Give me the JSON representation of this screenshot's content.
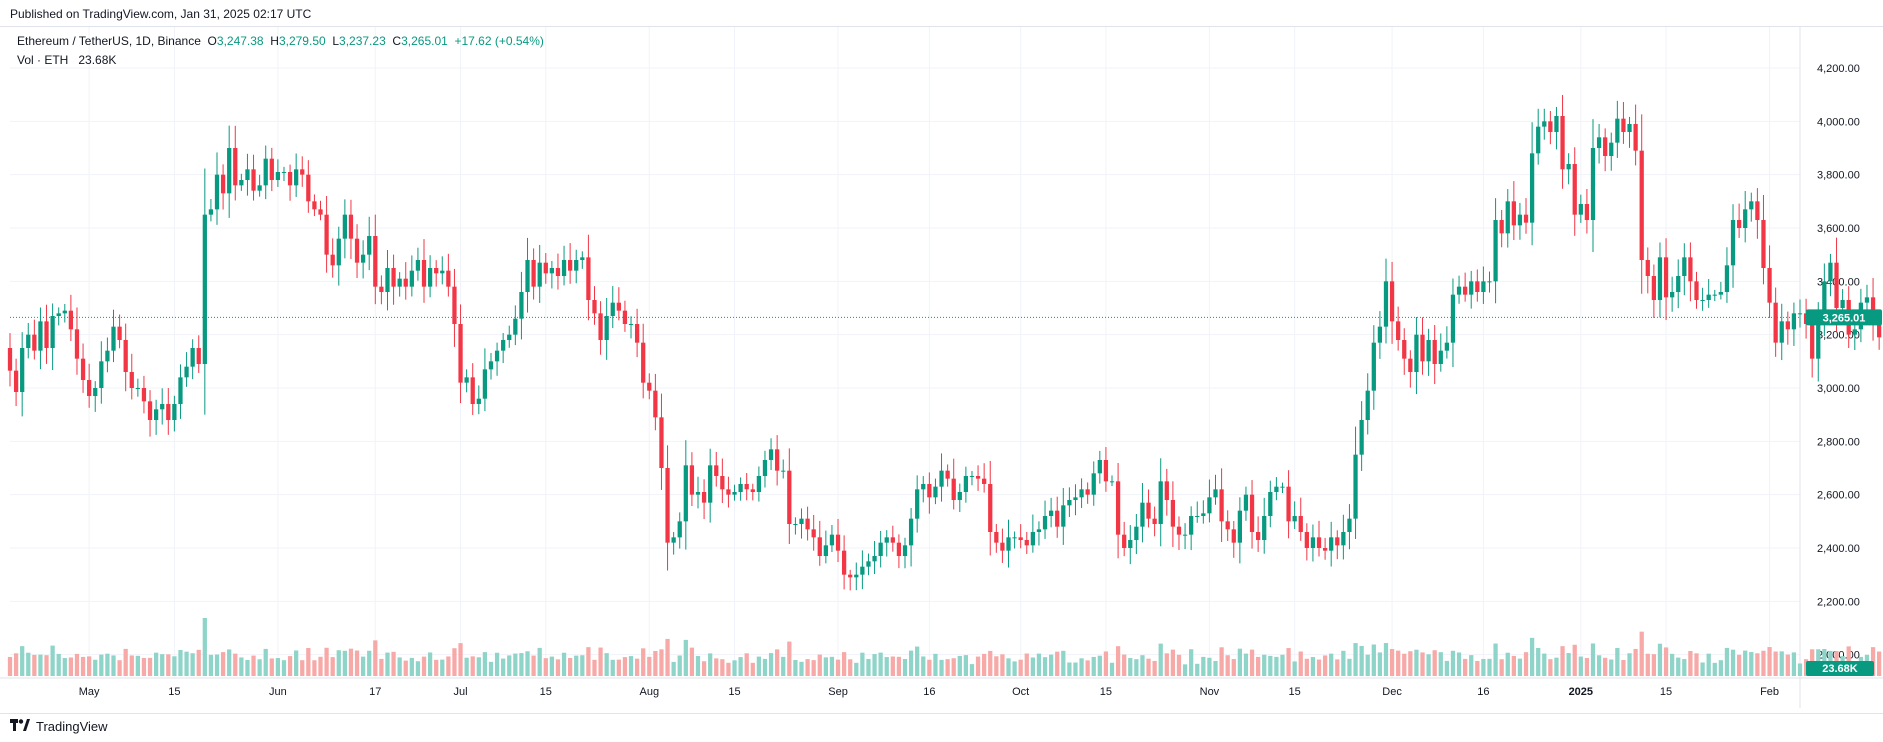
{
  "published": "Published on TradingView.com, Jan 31, 2025 02:17 UTC",
  "legend": {
    "symbol": "Ethereum / TetherUS, 1D, Binance",
    "o_label": "O",
    "o_value": "3,247.38",
    "h_label": "H",
    "h_value": "3,279.50",
    "l_label": "L",
    "l_value": "3,237.23",
    "c_label": "C",
    "c_value": "3,265.01",
    "change": "+17.62 (+0.54%)",
    "vol_label": "Vol · ETH",
    "vol_value": "23.68K"
  },
  "footer": {
    "brand": "TradingView",
    "logo_icon": "tradingview-logo-icon"
  },
  "colors": {
    "up": "#089981",
    "down": "#f23645",
    "up_vol": "#8fd4c8",
    "down_vol": "#f7a9a7",
    "grid": "#f0f3fa",
    "last_price_bg": "#089981"
  },
  "chart_data": {
    "type": "candlestick",
    "symbol": "Ethereum / TetherUS",
    "interval": "1D",
    "exchange": "Binance",
    "x_range": [
      "2024-04-18",
      "2025-02-06"
    ],
    "ylim": [
      1900,
      4300
    ],
    "y_ticks": [
      2000,
      2200,
      2400,
      2600,
      2800,
      3000,
      3200,
      3400,
      3600,
      3800,
      4000,
      4200
    ],
    "y_tick_labels": [
      "2,000.00",
      "2,200.00",
      "2,400.00",
      "2,600.00",
      "2,800.00",
      "3,000.00",
      "3,200.00",
      "3,400.00",
      "3,600.00",
      "3,800.00",
      "4,000.00",
      "4,200.00"
    ],
    "x_ticks": [
      {
        "date": "2024-05-01",
        "label": "May"
      },
      {
        "date": "2024-05-15",
        "label": "15"
      },
      {
        "date": "2024-06-01",
        "label": "Jun"
      },
      {
        "date": "2024-06-17",
        "label": "17"
      },
      {
        "date": "2024-07-01",
        "label": "Jul"
      },
      {
        "date": "2024-07-15",
        "label": "15"
      },
      {
        "date": "2024-08-01",
        "label": "Aug"
      },
      {
        "date": "2024-08-15",
        "label": "15"
      },
      {
        "date": "2024-09-01",
        "label": "Sep"
      },
      {
        "date": "2024-09-16",
        "label": "16"
      },
      {
        "date": "2024-10-01",
        "label": "Oct"
      },
      {
        "date": "2024-10-15",
        "label": "15"
      },
      {
        "date": "2024-11-01",
        "label": "Nov"
      },
      {
        "date": "2024-11-15",
        "label": "15"
      },
      {
        "date": "2024-12-01",
        "label": "Dec"
      },
      {
        "date": "2024-12-16",
        "label": "16"
      },
      {
        "date": "2025-01-01",
        "label": "2025"
      },
      {
        "date": "2025-01-15",
        "label": "15"
      },
      {
        "date": "2025-02-01",
        "label": "Feb"
      }
    ],
    "last_price": 3265.01,
    "last_price_label": "3,265.01",
    "volume_label": "23.68K",
    "grid": true,
    "start_date": "2024-04-18",
    "closes": [
      3065,
      2985,
      3150,
      3200,
      3140,
      3250,
      3150,
      3270,
      3280,
      3290,
      3220,
      3110,
      3030,
      2970,
      3000,
      3100,
      3140,
      3230,
      3180,
      3060,
      3000,
      3000,
      2950,
      2880,
      2920,
      2940,
      2880,
      2940,
      3040,
      3080,
      3150,
      3090,
      3650,
      3670,
      3800,
      3730,
      3900,
      3760,
      3780,
      3820,
      3740,
      3760,
      3860,
      3780,
      3810,
      3810,
      3760,
      3820,
      3800,
      3700,
      3670,
      3650,
      3500,
      3460,
      3560,
      3650,
      3560,
      3470,
      3500,
      3570,
      3380,
      3360,
      3450,
      3380,
      3410,
      3380,
      3440,
      3480,
      3380,
      3450,
      3430,
      3440,
      3380,
      3240,
      3020,
      3040,
      2940,
      2960,
      3070,
      3100,
      3140,
      3180,
      3200,
      3260,
      3360,
      3480,
      3380,
      3470,
      3430,
      3450,
      3420,
      3480,
      3440,
      3480,
      3490,
      3330,
      3280,
      3180,
      3270,
      3320,
      3290,
      3240,
      3240,
      3170,
      3020,
      2990,
      2890,
      2700,
      2420,
      2440,
      2500,
      2710,
      2600,
      2610,
      2570,
      2710,
      2670,
      2620,
      2600,
      2610,
      2640,
      2620,
      2610,
      2670,
      2730,
      2770,
      2690,
      2690,
      2490,
      2490,
      2510,
      2470,
      2440,
      2370,
      2410,
      2450,
      2390,
      2300,
      2290,
      2300,
      2330,
      2350,
      2370,
      2420,
      2440,
      2420,
      2370,
      2410,
      2510,
      2620,
      2640,
      2590,
      2630,
      2690,
      2660,
      2580,
      2610,
      2670,
      2670,
      2660,
      2640,
      2460,
      2420,
      2390,
      2440,
      2440,
      2430,
      2410,
      2460,
      2470,
      2520,
      2540,
      2480,
      2560,
      2580,
      2590,
      2620,
      2600,
      2680,
      2730,
      2650,
      2650,
      2450,
      2400,
      2430,
      2480,
      2570,
      2510,
      2490,
      2650,
      2580,
      2480,
      2450,
      2450,
      2520,
      2520,
      2530,
      2590,
      2620,
      2500,
      2470,
      2420,
      2540,
      2600,
      2460,
      2430,
      2520,
      2610,
      2630,
      2630,
      2500,
      2520,
      2460,
      2400,
      2440,
      2400,
      2390,
      2440,
      2410,
      2460,
      2510,
      2750,
      2880,
      2990,
      3170,
      3230,
      3400,
      3250,
      3180,
      3110,
      3060,
      3200,
      3100,
      3180,
      3090,
      3140,
      3170,
      3350,
      3380,
      3350,
      3400,
      3360,
      3400,
      3400,
      3630,
      3580,
      3700,
      3610,
      3650,
      3620,
      3880,
      3980,
      4000,
      3960,
      4020,
      3820,
      3840,
      3650,
      3690,
      3630,
      3900,
      3940,
      3870,
      3920,
      4010,
      3960,
      3990,
      3890,
      3480,
      3420,
      3330,
      3490,
      3340,
      3360,
      3420,
      3490,
      3400,
      3330,
      3330,
      3350,
      3350,
      3360,
      3460,
      3630,
      3600,
      3670,
      3700,
      3630,
      3450,
      3320,
      3170,
      3250,
      3220,
      3280,
      3280,
      3240,
      3110,
      3250,
      3400,
      3470,
      3300,
      3330,
      3200,
      3220,
      3320,
      3340,
      3240,
      3190,
      3120,
      3060,
      3110,
      3247,
      3265
    ],
    "volume_max_ethk": 1250
  }
}
